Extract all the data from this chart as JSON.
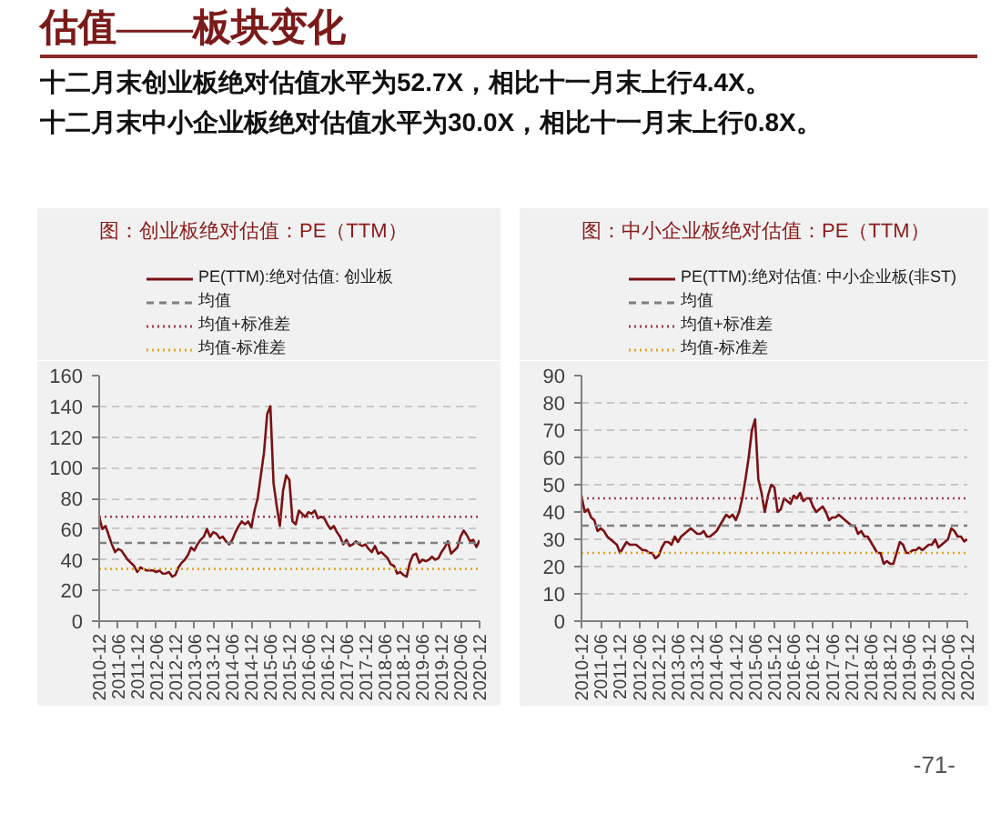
{
  "chart_data": [
    {
      "type": "other",
      "title": "估值——板块变化",
      "annotations": [
        "十二月末创业板绝对估值水平为52.7X，相比十一月末上行4.4X。",
        "十二月末中小企业板绝对估值水平为30.0X，相比十一月末上行0.8X。"
      ]
    },
    {
      "type": "line",
      "title": "图：创业板绝对估值：PE（TTM）",
      "x": [
        "2010-12",
        "2011-01",
        "2011-02",
        "2011-03",
        "2011-04",
        "2011-05",
        "2011-06",
        "2011-07",
        "2011-08",
        "2011-09",
        "2011-10",
        "2011-11",
        "2011-12",
        "2012-01",
        "2012-02",
        "2012-03",
        "2012-04",
        "2012-05",
        "2012-06",
        "2012-07",
        "2012-08",
        "2012-09",
        "2012-10",
        "2012-11",
        "2012-12",
        "2013-01",
        "2013-02",
        "2013-03",
        "2013-04",
        "2013-05",
        "2013-06",
        "2013-07",
        "2013-08",
        "2013-09",
        "2013-10",
        "2013-11",
        "2013-12",
        "2014-01",
        "2014-02",
        "2014-03",
        "2014-04",
        "2014-05",
        "2014-06",
        "2014-07",
        "2014-08",
        "2014-09",
        "2014-10",
        "2014-11",
        "2014-12",
        "2015-01",
        "2015-02",
        "2015-03",
        "2015-04",
        "2015-05",
        "2015-06",
        "2015-07",
        "2015-08",
        "2015-09",
        "2015-10",
        "2015-11",
        "2015-12",
        "2016-01",
        "2016-02",
        "2016-03",
        "2016-04",
        "2016-05",
        "2016-06",
        "2016-07",
        "2016-08",
        "2016-09",
        "2016-10",
        "2016-11",
        "2016-12",
        "2017-01",
        "2017-02",
        "2017-03",
        "2017-04",
        "2017-05",
        "2017-06",
        "2017-07",
        "2017-08",
        "2017-09",
        "2017-10",
        "2017-11",
        "2017-12",
        "2018-01",
        "2018-02",
        "2018-03",
        "2018-04",
        "2018-05",
        "2018-06",
        "2018-07",
        "2018-08",
        "2018-09",
        "2018-10",
        "2018-11",
        "2018-12",
        "2019-01",
        "2019-02",
        "2019-03",
        "2019-04",
        "2019-05",
        "2019-06",
        "2019-07",
        "2019-08",
        "2019-09",
        "2019-10",
        "2019-11",
        "2019-12",
        "2020-01",
        "2020-02",
        "2020-03",
        "2020-04",
        "2020-05",
        "2020-06",
        "2020-07",
        "2020-08",
        "2020-09",
        "2020-10",
        "2020-11",
        "2020-12"
      ],
      "series": [
        {
          "name": "PE(TTM):绝对估值: 创业板",
          "color": "#7b1113",
          "values": [
            68,
            60,
            62,
            56,
            50,
            45,
            47,
            46,
            43,
            40,
            38,
            36,
            32,
            35,
            34,
            33,
            33,
            33,
            32,
            33,
            31,
            31,
            32,
            29,
            30,
            35,
            38,
            40,
            43,
            48,
            46,
            50,
            53,
            55,
            60,
            55,
            58,
            57,
            54,
            55,
            52,
            50,
            53,
            58,
            62,
            65,
            63,
            65,
            61,
            72,
            80,
            95,
            110,
            135,
            140,
            90,
            75,
            62,
            85,
            95,
            92,
            65,
            63,
            72,
            70,
            68,
            71,
            70,
            72,
            67,
            68,
            67,
            63,
            60,
            62,
            58,
            55,
            50,
            53,
            49,
            50,
            52,
            50,
            49,
            50,
            47,
            45,
            49,
            44,
            45,
            43,
            41,
            37,
            36,
            31,
            32,
            30,
            29,
            38,
            43,
            44,
            38,
            40,
            39,
            40,
            42,
            40,
            41,
            45,
            48,
            52,
            44,
            46,
            48,
            55,
            59,
            56,
            52,
            53,
            48.3,
            52.7
          ]
        }
      ],
      "ref_lines": [
        {
          "axis": "y",
          "value": 51,
          "label": "均值",
          "color": "#7f7f7f",
          "line_style": "dashed"
        },
        {
          "axis": "y",
          "value": 68,
          "label": "均值+标准差",
          "color": "#a03c50",
          "line_style": "dotted"
        },
        {
          "axis": "y",
          "value": 34,
          "label": "均值-标准差",
          "color": "#e0a526",
          "line_style": "dotted"
        }
      ],
      "xlim": [
        "2010-12",
        "2020-12"
      ],
      "xticks": [
        "2010-12",
        "2011-06",
        "2011-12",
        "2012-06",
        "2012-12",
        "2013-06",
        "2013-12",
        "2014-06",
        "2014-12",
        "2015-06",
        "2015-12",
        "2016-06",
        "2016-12",
        "2017-06",
        "2017-12",
        "2018-06",
        "2018-12",
        "2019-06",
        "2019-12",
        "2020-06",
        "2020-12"
      ],
      "ylim": [
        0,
        160
      ],
      "yticks": [
        0,
        20,
        40,
        60,
        80,
        100,
        120,
        140,
        160
      ],
      "grid": "y",
      "legend": "top"
    },
    {
      "type": "line",
      "title": "图：中小企业板绝对估值：PE（TTM）",
      "x": [
        "2010-12",
        "2011-01",
        "2011-02",
        "2011-03",
        "2011-04",
        "2011-05",
        "2011-06",
        "2011-07",
        "2011-08",
        "2011-09",
        "2011-10",
        "2011-11",
        "2011-12",
        "2012-01",
        "2012-02",
        "2012-03",
        "2012-04",
        "2012-05",
        "2012-06",
        "2012-07",
        "2012-08",
        "2012-09",
        "2012-10",
        "2012-11",
        "2012-12",
        "2013-01",
        "2013-02",
        "2013-03",
        "2013-04",
        "2013-05",
        "2013-06",
        "2013-07",
        "2013-08",
        "2013-09",
        "2013-10",
        "2013-11",
        "2013-12",
        "2014-01",
        "2014-02",
        "2014-03",
        "2014-04",
        "2014-05",
        "2014-06",
        "2014-07",
        "2014-08",
        "2014-09",
        "2014-10",
        "2014-11",
        "2014-12",
        "2015-01",
        "2015-02",
        "2015-03",
        "2015-04",
        "2015-05",
        "2015-06",
        "2015-07",
        "2015-08",
        "2015-09",
        "2015-10",
        "2015-11",
        "2015-12",
        "2016-01",
        "2016-02",
        "2016-03",
        "2016-04",
        "2016-05",
        "2016-06",
        "2016-07",
        "2016-08",
        "2016-09",
        "2016-10",
        "2016-11",
        "2016-12",
        "2017-01",
        "2017-02",
        "2017-03",
        "2017-04",
        "2017-05",
        "2017-06",
        "2017-07",
        "2017-08",
        "2017-09",
        "2017-10",
        "2017-11",
        "2017-12",
        "2018-01",
        "2018-02",
        "2018-03",
        "2018-04",
        "2018-05",
        "2018-06",
        "2018-07",
        "2018-08",
        "2018-09",
        "2018-10",
        "2018-11",
        "2018-12",
        "2019-01",
        "2019-02",
        "2019-03",
        "2019-04",
        "2019-05",
        "2019-06",
        "2019-07",
        "2019-08",
        "2019-09",
        "2019-10",
        "2019-11",
        "2019-12",
        "2020-01",
        "2020-02",
        "2020-03",
        "2020-04",
        "2020-05",
        "2020-06",
        "2020-07",
        "2020-08",
        "2020-09",
        "2020-10",
        "2020-11",
        "2020-12"
      ],
      "series": [
        {
          "name": "PE(TTM):绝对估值: 中小企业板(非ST)",
          "color": "#7b1113",
          "values": [
            46,
            40,
            41,
            38,
            37,
            33,
            34,
            33,
            31,
            30,
            29,
            28,
            25,
            27,
            29,
            28,
            28,
            28,
            27,
            26,
            26,
            25,
            25,
            23,
            24,
            27,
            29,
            29,
            28,
            31,
            29,
            31,
            32,
            33,
            34,
            33,
            32,
            32,
            33,
            31,
            31,
            32,
            33,
            35,
            37,
            39,
            38,
            39,
            37,
            40,
            45,
            52,
            60,
            70,
            74,
            52,
            47,
            40,
            46,
            50,
            49,
            40,
            41,
            45,
            44,
            43,
            46,
            45,
            47,
            44,
            45,
            45,
            42,
            40,
            41,
            42,
            40,
            37,
            38,
            38,
            39,
            38,
            37,
            36,
            35,
            35,
            32,
            33,
            31,
            31,
            29,
            27,
            25,
            25,
            21,
            22,
            21,
            21,
            25,
            29,
            28,
            25,
            25,
            26,
            26,
            27,
            26,
            27,
            28,
            28,
            30,
            27,
            28,
            29,
            30,
            34,
            33,
            31,
            31,
            29.2,
            30.0
          ]
        }
      ],
      "ref_lines": [
        {
          "axis": "y",
          "value": 35,
          "label": "均值",
          "color": "#7f7f7f",
          "line_style": "dashed"
        },
        {
          "axis": "y",
          "value": 45,
          "label": "均值+标准差",
          "color": "#a03c50",
          "line_style": "dotted"
        },
        {
          "axis": "y",
          "value": 25,
          "label": "均值-标准差",
          "color": "#e0a526",
          "line_style": "dotted"
        }
      ],
      "xlim": [
        "2010-12",
        "2020-12"
      ],
      "xticks": [
        "2010-12",
        "2011-06",
        "2011-12",
        "2012-06",
        "2012-12",
        "2013-06",
        "2013-12",
        "2014-06",
        "2014-12",
        "2015-06",
        "2015-12",
        "2016-06",
        "2016-12",
        "2017-06",
        "2017-12",
        "2018-06",
        "2018-12",
        "2019-06",
        "2019-12",
        "2020-06",
        "2020-12"
      ],
      "ylim": [
        0,
        90
      ],
      "yticks": [
        0,
        10,
        20,
        30,
        40,
        50,
        60,
        70,
        80,
        90
      ],
      "grid": "y",
      "legend": "top"
    },
    {
      "type": "other",
      "annotations": [
        "-71-"
      ]
    }
  ]
}
